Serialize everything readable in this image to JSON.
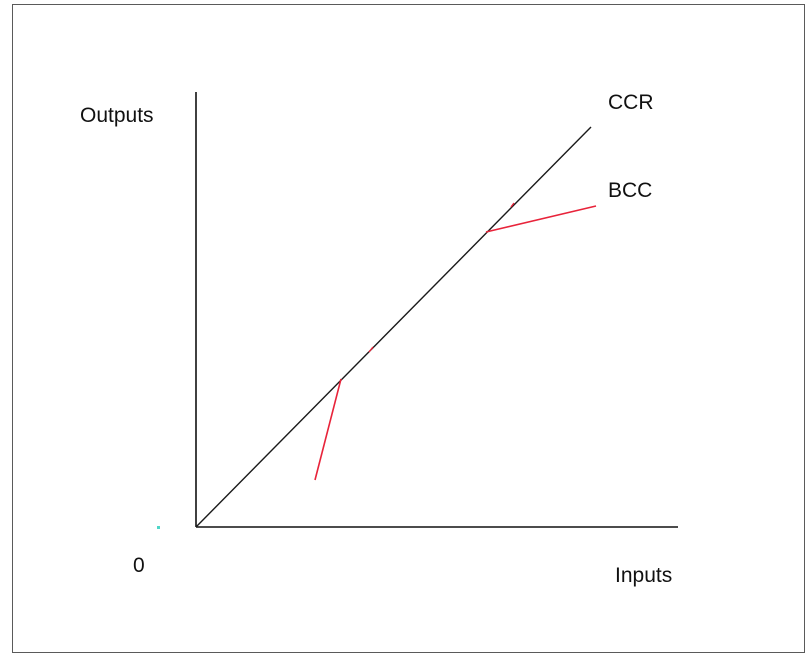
{
  "diagram": {
    "y_axis_label": "Outputs",
    "x_axis_label": "Inputs",
    "origin_label": "0",
    "frontier_ccr_label": "CCR",
    "frontier_bcc_label": "BCC",
    "colors": {
      "axes": "#111111",
      "ccr_line": "#1a1a1a",
      "bcc_line": "#e8233a",
      "frame": "#5a5a5a",
      "stray_dot": "#4fd6c8"
    }
  }
}
